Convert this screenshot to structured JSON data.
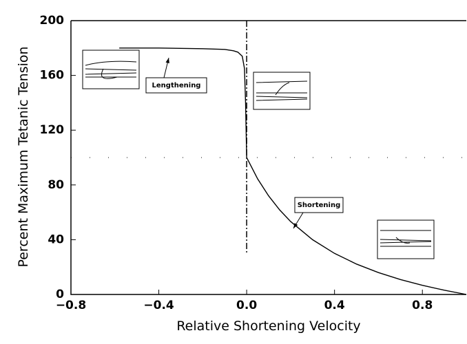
{
  "chart_data": {
    "type": "line",
    "xlabel": "Relative Shortening Velocity",
    "ylabel": "Percent Maximum Tetanic Tension",
    "x": [
      -0.58,
      -0.4,
      -0.2,
      -0.1,
      -0.06,
      -0.04,
      -0.02,
      -0.01,
      -0.005,
      0,
      0.05,
      0.1,
      0.15,
      0.2,
      0.3,
      0.4,
      0.5,
      0.6,
      0.7,
      0.8,
      0.9,
      1.0
    ],
    "values": [
      180,
      180,
      179.5,
      179,
      178,
      177,
      174,
      165,
      140,
      100,
      84.4,
      72,
      61.8,
      53.3,
      40,
      30,
      22.2,
      16,
      10.9,
      6.7,
      3.1,
      0
    ],
    "color": "#000000",
    "xlim": [
      -0.8,
      1.0
    ],
    "ylim": [
      0,
      200
    ],
    "xticks": [
      {
        "value": -0.8,
        "label": "−0.8"
      },
      {
        "value": -0.4,
        "label": "−0.4"
      },
      {
        "value": 0,
        "label": "0.0"
      },
      0.4,
      0.8
    ],
    "yticks": [
      0,
      40,
      80,
      120,
      160,
      200
    ],
    "hline": 100,
    "vline": {
      "x": 0,
      "y": [
        30,
        200
      ]
    },
    "annotations": [
      "Lengthening",
      "Shortening"
    ]
  }
}
